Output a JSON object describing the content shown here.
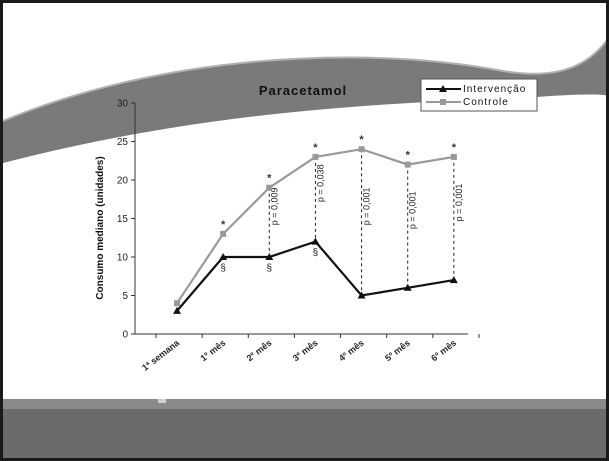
{
  "chart_data": {
    "type": "line",
    "title": "Paracetamol",
    "ylabel": "Consumo mediano (unidades)",
    "xlabel": "",
    "ylim": [
      0,
      30
    ],
    "yticks": [
      0,
      5,
      10,
      15,
      20,
      25,
      30
    ],
    "categories": [
      "1ª semana",
      "1º mês",
      "2º mês",
      "3º mês",
      "4º mês",
      "5º mês",
      "6º mês"
    ],
    "series": [
      {
        "name": "Intervenção",
        "color": "#111111",
        "marker": "triangle",
        "values": [
          3,
          10,
          10,
          12,
          5,
          6,
          7
        ]
      },
      {
        "name": "Controle",
        "color": "#999999",
        "marker": "square",
        "values": [
          4,
          13,
          19,
          23,
          24,
          22,
          23
        ]
      }
    ],
    "p_values": [
      {
        "category": "2º mês",
        "text": "p = 0,009"
      },
      {
        "category": "3º mês",
        "text": "p = 0,038"
      },
      {
        "category": "4º mês",
        "text": "p = 0,001"
      },
      {
        "category": "5º mês",
        "text": "p = 0,001"
      },
      {
        "category": "6º mês",
        "text": "p = 0,001"
      }
    ],
    "star_marks": [
      "1º mês",
      "2º mês",
      "3º mês",
      "4º mês",
      "5º mês",
      "6º mês"
    ],
    "section_marks": [
      "1º mês",
      "2º mês",
      "3º mês"
    ],
    "star_symbol": "*",
    "section_symbol": "§",
    "legend_position": "top-right",
    "grid": false
  },
  "colors": {
    "background_wave": "#7a7a7a",
    "footer_band": "#6b6b6b",
    "footer_lower": "#8a8a8a"
  }
}
